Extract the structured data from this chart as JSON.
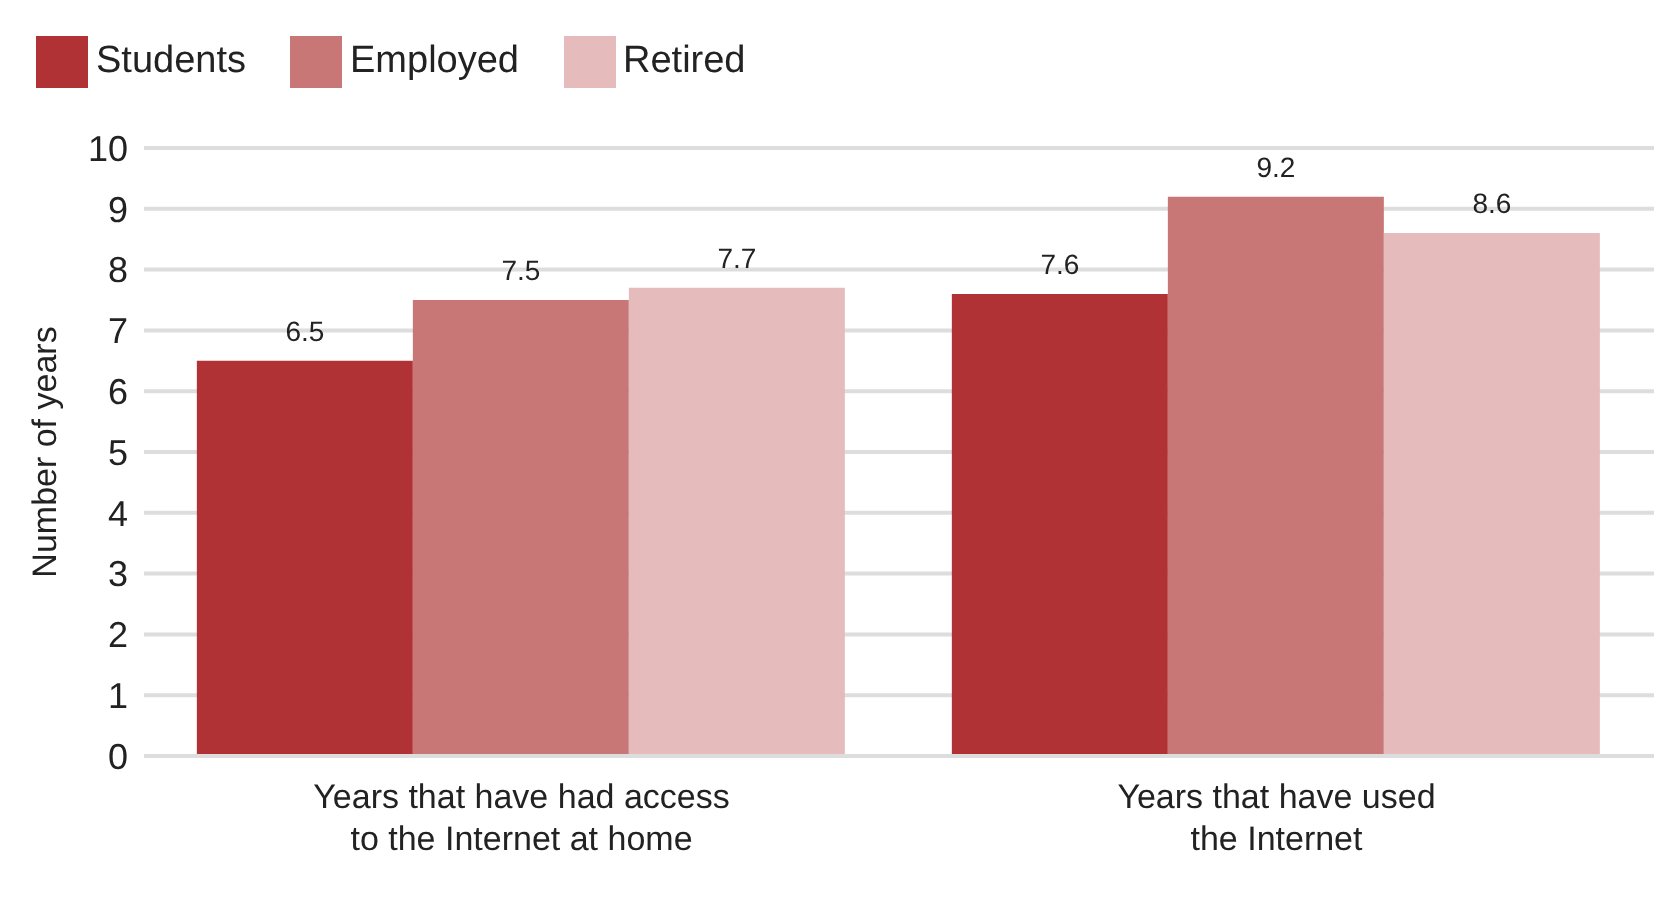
{
  "chart_data": {
    "type": "bar",
    "ylabel": "Number of years",
    "categories": [
      "Years that have had access\nto the Internet at home",
      "Years that have used\nthe Internet"
    ],
    "series": [
      {
        "name": "Students",
        "color": "#b03235",
        "values": [
          6.5,
          7.6
        ]
      },
      {
        "name": "Employed",
        "color": "#c97677",
        "values": [
          7.5,
          9.2
        ]
      },
      {
        "name": "Retired",
        "color": "#e5bcbb",
        "values": [
          7.7,
          8.6
        ]
      }
    ],
    "ylim": [
      0,
      10
    ],
    "yticks": [
      0,
      1,
      2,
      3,
      4,
      5,
      6,
      7,
      8,
      9,
      10
    ],
    "grid": "y",
    "legend": "top left",
    "data_labels": true
  }
}
